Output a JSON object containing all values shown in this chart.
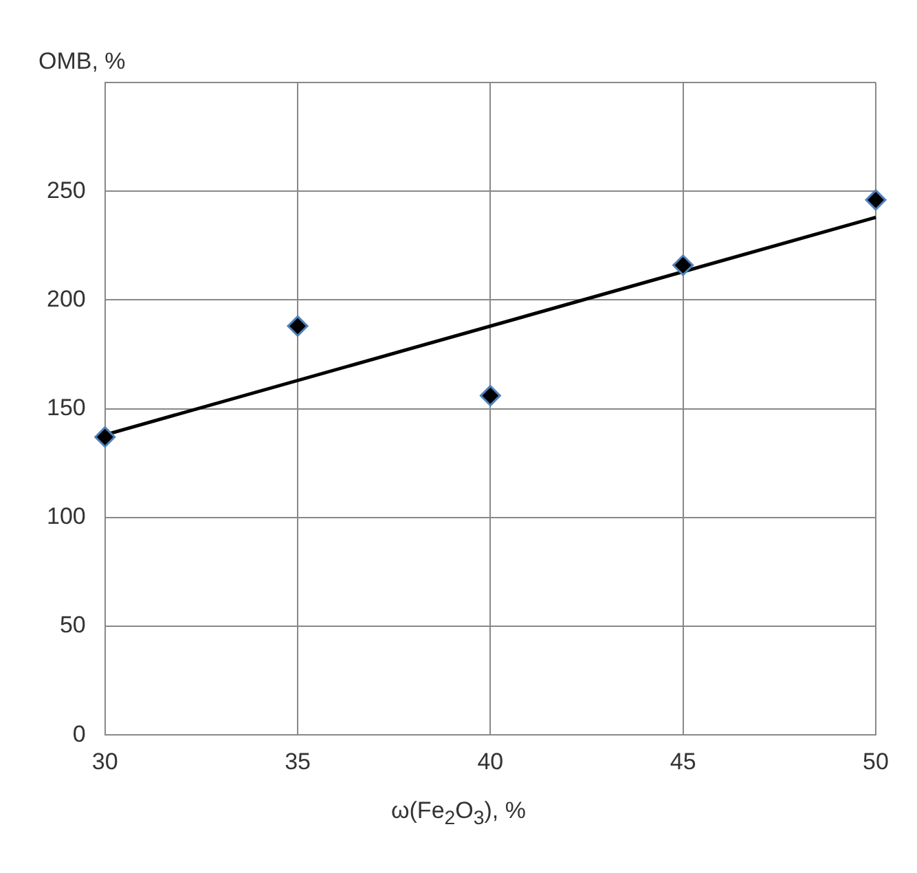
{
  "chart_data": {
    "type": "scatter",
    "xlabel": "ω(Fe$_{2}$O$_{3}$), %",
    "ylabel": "ОМВ, %",
    "xlim": [
      30,
      50
    ],
    "xticks": [
      30,
      35,
      40,
      45,
      50
    ],
    "ylim": [
      0,
      300
    ],
    "yticks": [
      0,
      50,
      100,
      150,
      200,
      250,
      {
        "value": 300,
        "label": null
      }
    ],
    "grid": true,
    "legend": false,
    "marker": "diamond",
    "series": [
      {
        "color": "#000000",
        "x": [
          30,
          35,
          40,
          45,
          50
        ],
        "values": [
          137,
          188,
          156,
          216,
          246
        ]
      },
      {
        "type": "line",
        "color": "#000000",
        "x": [
          30,
          50
        ],
        "values": [
          138,
          238
        ],
        "marker": "none",
        "line_style": "solid"
      }
    ]
  }
}
